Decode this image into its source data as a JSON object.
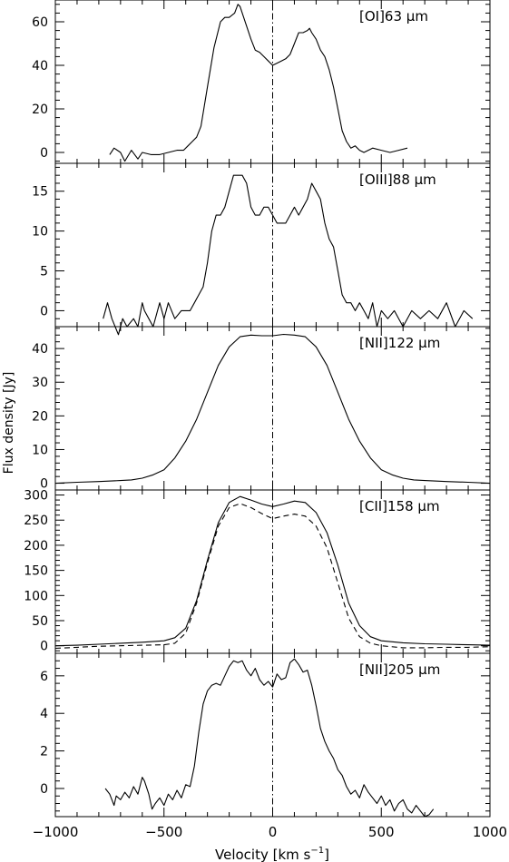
{
  "figure": {
    "ylabel": "Flux density [Jy]",
    "xlabel": "Velocity [km s",
    "xlabel_sup": "−1",
    "xlabel_end": "]"
  },
  "chart_data": [
    {
      "type": "line",
      "label": "[OI]63 μm",
      "xlim": [
        -1000,
        1000
      ],
      "ylim": [
        -5,
        70
      ],
      "yticks": [
        0,
        20,
        40,
        60
      ],
      "vline": 0,
      "series": [
        {
          "style": "solid",
          "x": [
            -750,
            -730,
            -700,
            -680,
            -650,
            -620,
            -600,
            -560,
            -520,
            -480,
            -440,
            -410,
            -390,
            -370,
            -350,
            -330,
            -300,
            -270,
            -240,
            -220,
            -200,
            -175,
            -160,
            -150,
            -140,
            -120,
            -100,
            -80,
            -60,
            -40,
            -20,
            -10,
            0,
            20,
            40,
            60,
            80,
            100,
            120,
            140,
            160,
            170,
            180,
            200,
            220,
            240,
            260,
            280,
            300,
            320,
            340,
            360,
            380,
            400,
            420,
            440,
            460,
            500,
            540,
            580,
            620
          ],
          "y": [
            -1,
            2,
            0,
            -4,
            1,
            -3,
            0,
            -1,
            -1,
            0,
            1,
            1,
            3,
            5,
            7,
            12,
            30,
            48,
            60,
            62,
            62,
            64,
            68,
            67,
            64,
            58,
            52,
            47,
            46,
            44,
            42,
            41,
            40,
            41,
            42,
            43,
            45,
            50,
            55,
            55,
            56,
            57,
            55,
            52,
            47,
            44,
            38,
            30,
            20,
            10,
            5,
            2,
            3,
            1,
            0,
            1,
            2,
            1,
            0,
            1,
            2
          ]
        }
      ]
    },
    {
      "type": "line",
      "label": "[OIII]88 μm",
      "xlim": [
        -1000,
        1000
      ],
      "ylim": [
        -2,
        18.5
      ],
      "yticks": [
        0,
        5,
        10,
        15
      ],
      "vline": 0,
      "series": [
        {
          "style": "solid",
          "x": [
            -780,
            -760,
            -740,
            -710,
            -690,
            -670,
            -640,
            -620,
            -600,
            -590,
            -570,
            -550,
            -520,
            -500,
            -480,
            -450,
            -420,
            -400,
            -380,
            -360,
            -340,
            -320,
            -300,
            -280,
            -260,
            -240,
            -220,
            -200,
            -180,
            -160,
            -140,
            -120,
            -100,
            -80,
            -60,
            -40,
            -20,
            0,
            20,
            40,
            60,
            80,
            100,
            120,
            140,
            160,
            180,
            200,
            220,
            240,
            260,
            280,
            300,
            320,
            340,
            360,
            380,
            400,
            420,
            440,
            460,
            480,
            500,
            530,
            560,
            600,
            640,
            680,
            720,
            760,
            800,
            840,
            880,
            920
          ],
          "y": [
            -1,
            1,
            -1,
            -3,
            -1,
            -2,
            -1,
            -2,
            1,
            0,
            -1,
            -2,
            1,
            -1,
            1,
            -1,
            0,
            0,
            0,
            1,
            2,
            3,
            6,
            10,
            12,
            12,
            13,
            15,
            17,
            17,
            17,
            16,
            13,
            12,
            12,
            13,
            13,
            12,
            11,
            11,
            11,
            12,
            13,
            12,
            13,
            14,
            16,
            15,
            14,
            11,
            9,
            8,
            5,
            2,
            1,
            1,
            0,
            1,
            0,
            -1,
            1,
            -2,
            0,
            -1,
            0,
            -2,
            0,
            -1,
            0,
            -1,
            1,
            -2,
            0,
            -1
          ]
        }
      ]
    },
    {
      "type": "line",
      "label": "[NII]122 μm",
      "xlim": [
        -1000,
        1000
      ],
      "ylim": [
        -2,
        46.5
      ],
      "yticks": [
        0,
        10,
        20,
        30,
        40
      ],
      "vline": 0,
      "series": [
        {
          "style": "solid",
          "x": [
            -1000,
            -900,
            -800,
            -700,
            -650,
            -600,
            -550,
            -500,
            -450,
            -400,
            -350,
            -300,
            -250,
            -200,
            -150,
            -100,
            -50,
            0,
            50,
            100,
            150,
            200,
            250,
            300,
            350,
            400,
            450,
            500,
            550,
            600,
            650,
            700,
            800,
            900,
            1000
          ],
          "y": [
            0,
            0.3,
            0.5,
            0.8,
            1,
            1.5,
            2.5,
            4,
            7.5,
            12.5,
            19,
            27,
            35,
            40.5,
            43.5,
            44,
            43.8,
            43.8,
            44.2,
            44,
            43.5,
            40.5,
            35,
            27,
            19,
            12.5,
            7.5,
            4,
            2.5,
            1.5,
            1,
            0.8,
            0.5,
            0.3,
            0
          ]
        }
      ]
    },
    {
      "type": "line",
      "label": "[CII]158 μm",
      "xlim": [
        -1000,
        1000
      ],
      "ylim": [
        -15,
        310
      ],
      "yticks": [
        0,
        50,
        100,
        150,
        200,
        250,
        300
      ],
      "vline": 0,
      "series": [
        {
          "style": "solid",
          "x": [
            -1000,
            -900,
            -800,
            -700,
            -600,
            -500,
            -450,
            -400,
            -350,
            -300,
            -250,
            -200,
            -150,
            -100,
            -50,
            0,
            50,
            100,
            150,
            200,
            250,
            300,
            350,
            400,
            450,
            500,
            600,
            700,
            800,
            900,
            1000
          ],
          "y": [
            0,
            1,
            3,
            5,
            7,
            10,
            16,
            35,
            90,
            170,
            245,
            285,
            297,
            290,
            282,
            277,
            282,
            288,
            285,
            265,
            225,
            160,
            85,
            40,
            18,
            10,
            6,
            4,
            3,
            2,
            1
          ]
        },
        {
          "style": "dashed",
          "x": [
            -1000,
            -900,
            -800,
            -700,
            -600,
            -500,
            -450,
            -400,
            -350,
            -300,
            -250,
            -200,
            -150,
            -100,
            -50,
            0,
            50,
            100,
            150,
            200,
            250,
            300,
            350,
            400,
            450,
            500,
            600,
            700,
            800,
            900,
            1000
          ],
          "y": [
            -5,
            -3,
            -1,
            0,
            1,
            2,
            5,
            25,
            85,
            165,
            238,
            275,
            283,
            275,
            263,
            253,
            258,
            262,
            258,
            238,
            195,
            125,
            55,
            18,
            5,
            0,
            -4,
            -4,
            -3,
            -3,
            -2
          ]
        }
      ]
    },
    {
      "type": "line",
      "label": "[NII]205 μm",
      "xlim": [
        -1000,
        1000
      ],
      "ylim": [
        -1.5,
        7.2
      ],
      "yticks": [
        0,
        2,
        4,
        6
      ],
      "vline": 0,
      "series": [
        {
          "style": "solid",
          "x": [
            -770,
            -750,
            -730,
            -720,
            -700,
            -680,
            -660,
            -640,
            -620,
            -600,
            -590,
            -570,
            -555,
            -540,
            -520,
            -500,
            -480,
            -460,
            -440,
            -420,
            -400,
            -380,
            -360,
            -340,
            -320,
            -300,
            -280,
            -260,
            -240,
            -220,
            -200,
            -180,
            -160,
            -140,
            -120,
            -100,
            -80,
            -60,
            -40,
            -20,
            0,
            20,
            40,
            60,
            80,
            100,
            120,
            140,
            160,
            180,
            200,
            220,
            240,
            260,
            280,
            300,
            320,
            340,
            360,
            380,
            400,
            420,
            440,
            460,
            480,
            500,
            520,
            540,
            560,
            580,
            600,
            620,
            640,
            660,
            680,
            700,
            720,
            740
          ],
          "y": [
            0,
            -0.3,
            -0.9,
            -0.4,
            -0.6,
            -0.2,
            -0.5,
            0.1,
            -0.3,
            0.6,
            0.4,
            -0.3,
            -1.1,
            -0.8,
            -0.5,
            -0.9,
            -0.3,
            -0.6,
            -0.1,
            -0.5,
            0.2,
            0.1,
            1.2,
            3,
            4.5,
            5.2,
            5.5,
            5.6,
            5.5,
            6,
            6.5,
            6.8,
            6.7,
            6.8,
            6.3,
            6,
            6.4,
            5.8,
            5.5,
            5.7,
            5.4,
            6.1,
            5.8,
            5.9,
            6.7,
            6.9,
            6.6,
            6.2,
            6.3,
            5.5,
            4.4,
            3.2,
            2.5,
            2,
            1.6,
            1,
            0.7,
            0.1,
            -0.3,
            -0.1,
            -0.5,
            0.2,
            -0.2,
            -0.5,
            -0.8,
            -0.4,
            -0.9,
            -0.6,
            -1.2,
            -0.8,
            -0.6,
            -1.1,
            -1.3,
            -0.9,
            -1.2,
            -1.5,
            -1.4,
            -1.1
          ]
        }
      ]
    }
  ],
  "xaxis": {
    "ticks": [
      -1000,
      -500,
      0,
      500,
      1000
    ],
    "ticklabels": [
      "−1000",
      "−500",
      "0",
      "500",
      "1000"
    ]
  }
}
